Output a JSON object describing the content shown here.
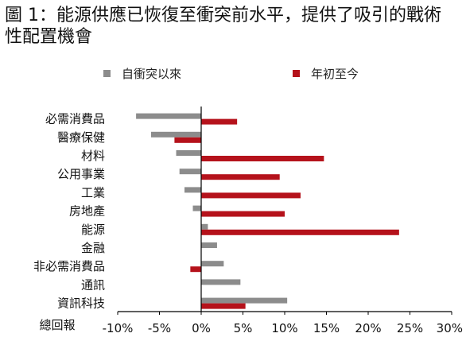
{
  "title": "圖 1：能源供應已恢復至衝突前水平，提供了吸引的戰術性配置機會",
  "chart_data": {
    "type": "bar",
    "orientation": "horizontal",
    "categories": [
      "必需消費品",
      "醫療保健",
      "材料",
      "公用事業",
      "工業",
      "房地產",
      "能源",
      "金融",
      "非必需消費品",
      "通訊",
      "資訊科技"
    ],
    "xlabel": "總回報",
    "xlim": [
      -10,
      30
    ],
    "xticks": [
      -10,
      -5,
      0,
      5,
      10,
      15,
      20,
      25,
      30
    ],
    "tick_labels": [
      "-10%",
      "-5%",
      "0%",
      "5%",
      "10%",
      "15%",
      "20%",
      "25%",
      "30%"
    ],
    "legend_position": "top",
    "series": [
      {
        "name": "自衝突以來",
        "color": "#8c8c8c",
        "values": [
          -7.8,
          -6.0,
          -3.0,
          -2.6,
          -2.0,
          -1.0,
          0.8,
          1.9,
          2.7,
          4.7,
          10.3
        ]
      },
      {
        "name": "年初至今",
        "color": "#b5121b",
        "values": [
          4.3,
          -3.2,
          14.7,
          9.4,
          11.9,
          10.0,
          23.7,
          0.0,
          -1.3,
          0.0,
          5.3
        ]
      }
    ]
  }
}
